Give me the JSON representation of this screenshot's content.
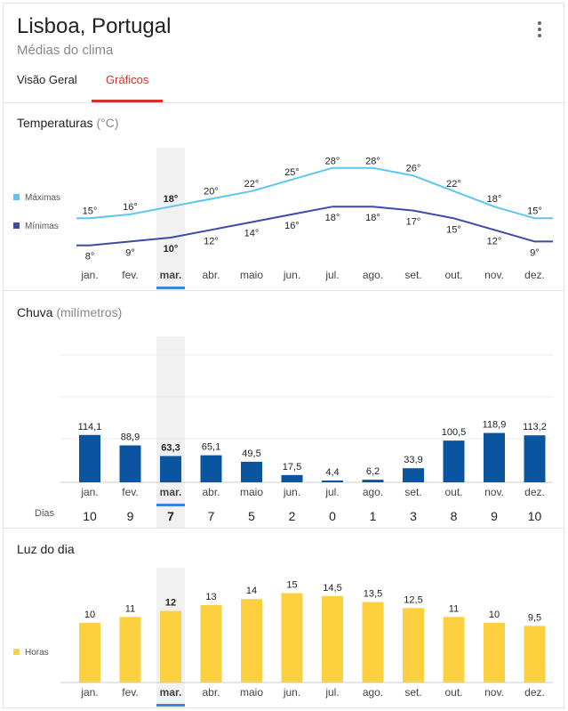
{
  "header": {
    "title": "Lisboa, Portugal",
    "subtitle": "Médias do clima",
    "tabs": [
      {
        "label": "Visão Geral",
        "active": false
      },
      {
        "label": "Gráficos",
        "active": true
      }
    ],
    "menu_icon": "more-vert-icon"
  },
  "months": [
    "jan.",
    "fev.",
    "mar.",
    "abr.",
    "maio",
    "jun.",
    "jul.",
    "ago.",
    "set.",
    "out.",
    "nov.",
    "dez."
  ],
  "selected_month_index": 2,
  "colors": {
    "max_line": "#5cc6f0",
    "min_line": "#3b4ba8",
    "rain_bar": "#0b55a0",
    "daylight_bar": "#fcd03f",
    "accent": "#d93025",
    "selected_underline": "#3b86dd",
    "selected_column": "#f1f1f1"
  },
  "temperature": {
    "title": "Temperaturas",
    "unit": "(°C)",
    "legend_max": "Máximas",
    "legend_min": "Mínimas"
  },
  "rain": {
    "title": "Chuva",
    "unit": "(milímetros)",
    "days_label": "Dias"
  },
  "daylight": {
    "title": "Luz do dia",
    "legend": "Horas"
  },
  "chart_data": [
    {
      "type": "line",
      "title": "Temperaturas (°C)",
      "categories": [
        "jan.",
        "fev.",
        "mar.",
        "abr.",
        "maio",
        "jun.",
        "jul.",
        "ago.",
        "set.",
        "out.",
        "nov.",
        "dez."
      ],
      "series": [
        {
          "name": "Máximas",
          "values": [
            15,
            16,
            18,
            20,
            22,
            25,
            28,
            28,
            26,
            22,
            18,
            15
          ],
          "labels": [
            "15°",
            "16°",
            "18°",
            "20°",
            "22°",
            "25°",
            "28°",
            "28°",
            "26°",
            "22°",
            "18°",
            "15°"
          ]
        },
        {
          "name": "Mínimas",
          "values": [
            8,
            9,
            10,
            12,
            14,
            16,
            18,
            18,
            17,
            15,
            12,
            9
          ],
          "labels": [
            "8°",
            "9°",
            "10°",
            "12°",
            "14°",
            "16°",
            "18°",
            "18°",
            "17°",
            "15°",
            "12°",
            "9°"
          ]
        }
      ],
      "legend": "left"
    },
    {
      "type": "bar",
      "title": "Chuva (milímetros)",
      "categories": [
        "jan.",
        "fev.",
        "mar.",
        "abr.",
        "maio",
        "jun.",
        "jul.",
        "ago.",
        "set.",
        "out.",
        "nov.",
        "dez."
      ],
      "values": [
        114.1,
        88.9,
        63.3,
        65.1,
        49.5,
        17.5,
        4.4,
        6.2,
        33.9,
        100.5,
        118.9,
        113.2
      ],
      "labels": [
        "114,1",
        "88,9",
        "63,3",
        "65,1",
        "49,5",
        "17,5",
        "4,4",
        "6,2",
        "33,9",
        "100,5",
        "118,9",
        "113,2"
      ],
      "days": [
        "10",
        "9",
        "7",
        "7",
        "5",
        "2",
        "0",
        "1",
        "3",
        "8",
        "9",
        "10"
      ],
      "grid": true
    },
    {
      "type": "bar",
      "title": "Luz do dia",
      "categories": [
        "jan.",
        "fev.",
        "mar.",
        "abr.",
        "maio",
        "jun.",
        "jul.",
        "ago.",
        "set.",
        "out.",
        "nov.",
        "dez."
      ],
      "series": [
        {
          "name": "Horas",
          "values": [
            10,
            11,
            12,
            13,
            14,
            15,
            14.5,
            13.5,
            12.5,
            11,
            10,
            9.5
          ]
        }
      ],
      "labels": [
        "10",
        "11",
        "12",
        "13",
        "14",
        "15",
        "14,5",
        "13,5",
        "12,5",
        "11",
        "10",
        "9,5"
      ],
      "legend": "left"
    }
  ]
}
